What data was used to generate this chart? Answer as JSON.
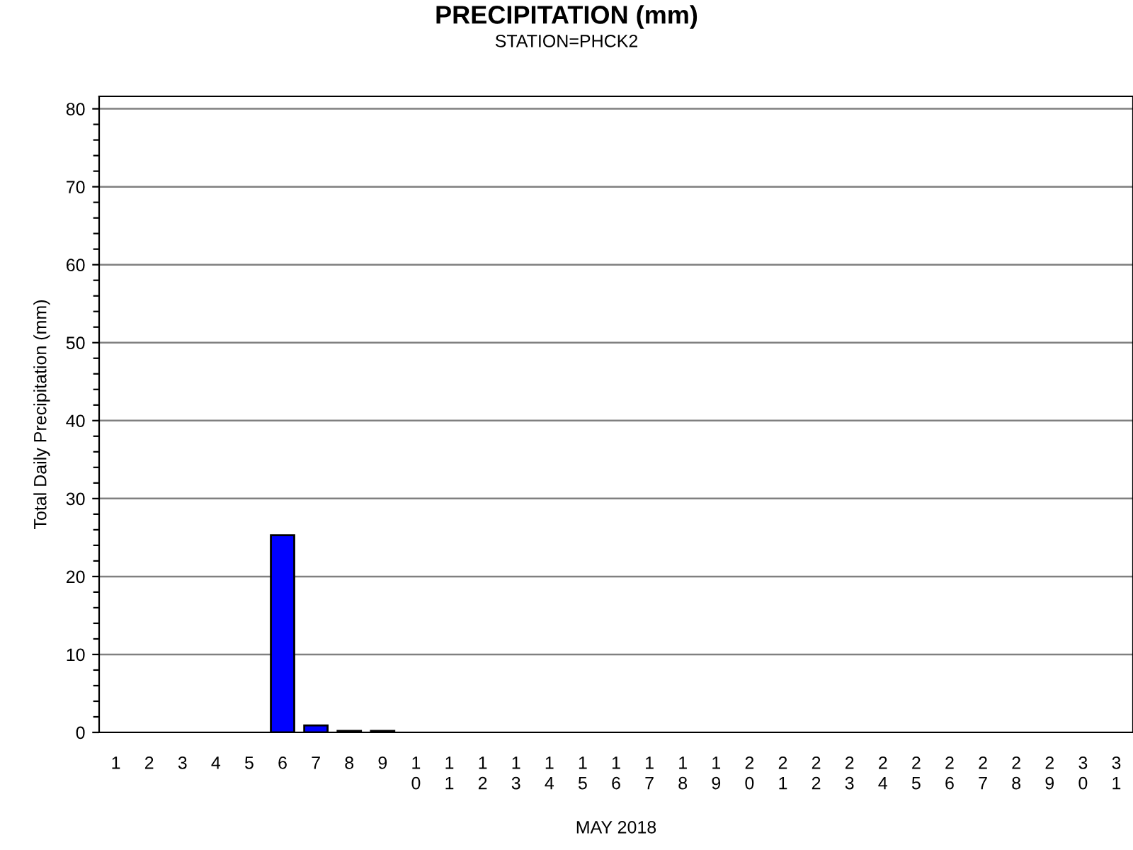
{
  "chart_data": {
    "type": "bar",
    "title": "PRECIPITATION (mm)",
    "subtitle": "STATION=PHCK2",
    "xlabel": "MAY 2018",
    "ylabel": "Total Daily Precipitation (mm)",
    "categories": [
      "1",
      "2",
      "3",
      "4",
      "5",
      "6",
      "7",
      "8",
      "9",
      "10",
      "11",
      "12",
      "13",
      "14",
      "15",
      "16",
      "17",
      "18",
      "19",
      "20",
      "21",
      "22",
      "23",
      "24",
      "25",
      "26",
      "27",
      "28",
      "29",
      "30",
      "31"
    ],
    "values": [
      0,
      0,
      0,
      0,
      0,
      25.3,
      0.9,
      0.2,
      0.2,
      0,
      0,
      0,
      0,
      0,
      0,
      0,
      0,
      0,
      0,
      0,
      0,
      0,
      0,
      0,
      0,
      0,
      0,
      0,
      0,
      0,
      0
    ],
    "color": "#0000ff",
    "ylim": [
      0,
      81.6
    ],
    "yticks": [
      0,
      {
        "value": 2,
        "label": null
      },
      {
        "value": 4,
        "label": null
      },
      {
        "value": 6,
        "label": null
      },
      {
        "value": 8,
        "label": null
      },
      10,
      {
        "value": 12,
        "label": null
      },
      {
        "value": 14,
        "label": null
      },
      {
        "value": 16,
        "label": null
      },
      {
        "value": 18,
        "label": null
      },
      20,
      {
        "value": 22,
        "label": null
      },
      {
        "value": 24,
        "label": null
      },
      {
        "value": 26,
        "label": null
      },
      {
        "value": 28,
        "label": null
      },
      30,
      {
        "value": 32,
        "label": null
      },
      {
        "value": 34,
        "label": null
      },
      {
        "value": 36,
        "label": null
      },
      {
        "value": 38,
        "label": null
      },
      40,
      {
        "value": 42,
        "label": null
      },
      {
        "value": 44,
        "label": null
      },
      {
        "value": 46,
        "label": null
      },
      {
        "value": 48,
        "label": null
      },
      50,
      {
        "value": 52,
        "label": null
      },
      {
        "value": 54,
        "label": null
      },
      {
        "value": 56,
        "label": null
      },
      {
        "value": 58,
        "label": null
      },
      60,
      {
        "value": 62,
        "label": null
      },
      {
        "value": 64,
        "label": null
      },
      {
        "value": 66,
        "label": null
      },
      {
        "value": 68,
        "label": null
      },
      70,
      {
        "value": 72,
        "label": null
      },
      {
        "value": 74,
        "label": null
      },
      {
        "value": 76,
        "label": null
      },
      {
        "value": 78,
        "label": null
      },
      80
    ],
    "grid": "y"
  }
}
